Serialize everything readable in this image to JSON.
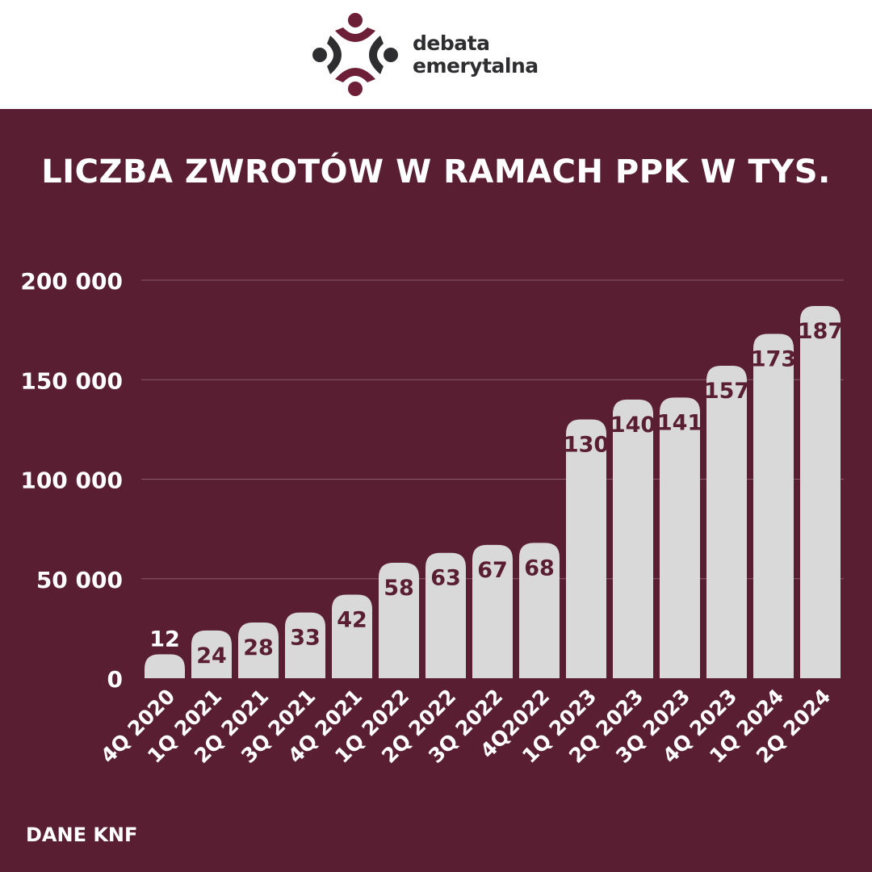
{
  "header": {
    "brand_line1": "debata",
    "brand_line2": "emerytalna",
    "logo_icon": "people-circle-logo-icon",
    "colors": {
      "dark": "#2e2e30",
      "accent": "#6d1f37"
    }
  },
  "footer": {
    "source": "DANE KNF"
  },
  "colors": {
    "background": "#5a1e32",
    "bar": "#d9d9d9",
    "bar_label": "#5a1e32",
    "text": "#ffffff"
  },
  "chart_data": {
    "type": "bar",
    "title": "LICZBA ZWROTÓW W RAMACH PPK W TYS.",
    "categories": [
      "4Q 2020",
      "1Q 2021",
      "2Q 2021",
      "3Q 2021",
      "4Q 2021",
      "1Q 2022",
      "2Q 2022",
      "3Q 2022",
      "4Q2022",
      "1Q 2023",
      "2Q 2023",
      "3Q 2023",
      "4Q 2023",
      "1Q 2024",
      "2Q 2024"
    ],
    "values": [
      12,
      24,
      28,
      33,
      42,
      58,
      63,
      67,
      68,
      130,
      140,
      141,
      157,
      173,
      187
    ],
    "ylim": [
      0,
      200000
    ],
    "yticks": [
      "0",
      "50 000",
      "100 000",
      "150 000",
      "200 000"
    ],
    "yticks_values": [
      0,
      50000,
      100000,
      150000,
      200000
    ],
    "grid": true,
    "legend": "none"
  }
}
